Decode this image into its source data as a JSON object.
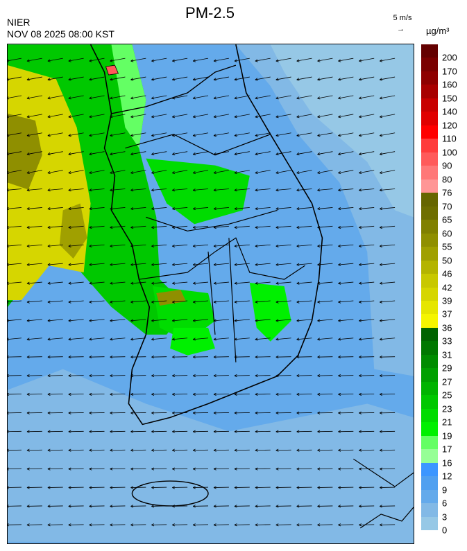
{
  "title": "PM-2.5",
  "source": "NIER",
  "datetime": "NOV 08 2025 08:00 KST",
  "wind_reference": {
    "label": "5 m/s",
    "icon": "arrow-right-icon"
  },
  "unit": "µg/m³",
  "legend": {
    "labels": [
      "200",
      "170",
      "160",
      "150",
      "140",
      "120",
      "110",
      "100",
      "90",
      "80",
      "76",
      "70",
      "65",
      "60",
      "55",
      "50",
      "46",
      "42",
      "39",
      "37",
      "36",
      "33",
      "31",
      "29",
      "27",
      "25",
      "23",
      "21",
      "19",
      "17",
      "16",
      "12",
      "9",
      "6",
      "3",
      "0"
    ],
    "colors": [
      "#640000",
      "#7a0000",
      "#8e0000",
      "#a80000",
      "#c80000",
      "#e00000",
      "#ff0000",
      "#ff3c3c",
      "#ff5a5a",
      "#ff7878",
      "#ff9696",
      "#666600",
      "#6e6e00",
      "#808000",
      "#8f8f00",
      "#a0a000",
      "#b4b400",
      "#c8c800",
      "#d6d600",
      "#e6e600",
      "#f5f500",
      "#006400",
      "#007800",
      "#008c00",
      "#00a000",
      "#00b400",
      "#00c800",
      "#00dc00",
      "#00f000",
      "#64ff64",
      "#96ff96",
      "#3c96ff",
      "#50a0f0",
      "#64aaeb",
      "#82b9e6",
      "#96c8e6"
    ]
  },
  "map": {
    "dominant_wind": "westward",
    "coastline_color": "#000000"
  }
}
